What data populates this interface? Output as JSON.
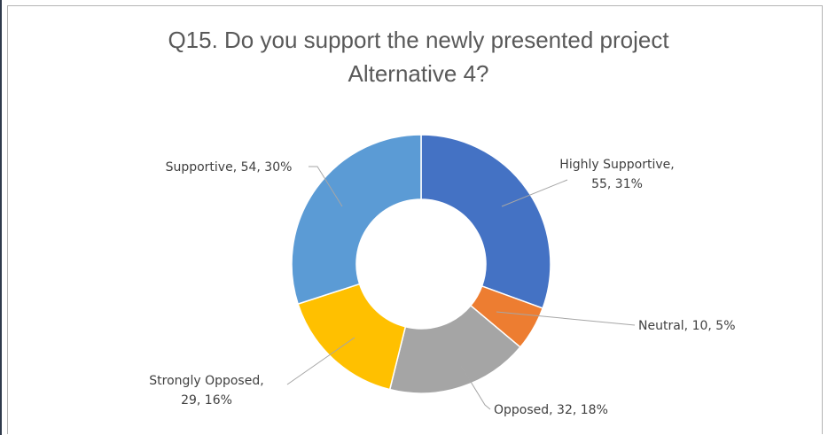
{
  "chart_data": {
    "type": "pie",
    "subtype": "doughnut",
    "title_lines": [
      "Q15. Do you support the newly presented project",
      "Alternative 4?"
    ],
    "slices": [
      {
        "name": "Highly Supportive",
        "value": 55,
        "percent": "31%",
        "label_lines": [
          "Highly Supportive,",
          "55, 31%"
        ],
        "color": "#4472c4"
      },
      {
        "name": "Neutral",
        "value": 10,
        "percent": "5%",
        "label_lines": [
          "Neutral, 10, 5%"
        ],
        "color": "#ed7d31"
      },
      {
        "name": "Opposed",
        "value": 32,
        "percent": "18%",
        "label_lines": [
          "Opposed, 32, 18%"
        ],
        "color": "#a5a5a5"
      },
      {
        "name": "Strongly Opposed",
        "value": 29,
        "percent": "16%",
        "label_lines": [
          "Strongly Opposed,",
          "29, 16%"
        ],
        "color": "#ffc000"
      },
      {
        "name": "Supportive",
        "value": 54,
        "percent": "30%",
        "label_lines": [
          "Supportive, 54, 30%"
        ],
        "color": "#5b9bd5"
      }
    ],
    "legend": "none"
  }
}
